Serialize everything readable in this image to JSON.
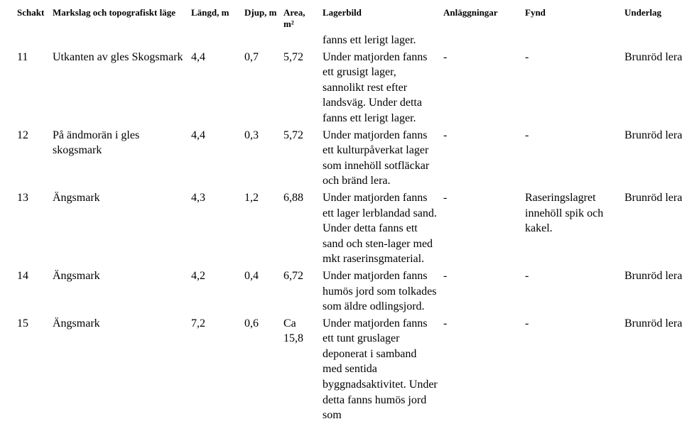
{
  "headers": {
    "schakt": "Schakt",
    "markslag": "Markslag och topografiskt läge",
    "langd": "Längd, m",
    "djup": "Djup, m",
    "area": "Area, m²",
    "lagerbild": "Lagerbild",
    "anlaggningar": "Anläggningar",
    "fynd": "Fynd",
    "underlag": "Underlag"
  },
  "prelude_text": "fanns ett lerigt lager.",
  "rows": [
    {
      "schakt": "11",
      "markslag": "Utkanten av gles Skogsmark",
      "langd": "4,4",
      "djup": "0,7",
      "area": "5,72",
      "lagerbild": "Under matjorden fanns ett grusigt lager, sannolikt rest efter landsväg. Under detta fanns ett lerigt lager.",
      "anlaggningar": "-",
      "fynd": "-",
      "underlag": "Brunröd lera"
    },
    {
      "schakt": "12",
      "markslag": "På ändmorän i gles skogsmark",
      "langd": "4,4",
      "djup": "0,3",
      "area": "5,72",
      "lagerbild": "Under matjorden fanns ett kulturpåverkat lager som innehöll sotfläckar och bränd lera.",
      "anlaggningar": "-",
      "fynd": "-",
      "underlag": "Brunröd lera"
    },
    {
      "schakt": "13",
      "markslag": "Ängsmark",
      "langd": "4,3",
      "djup": "1,2",
      "area": "6,88",
      "lagerbild": "Under matjorden fanns ett lager lerblandad sand. Under detta fanns ett sand och sten-lager med mkt raserinsgmaterial.",
      "anlaggningar": "-",
      "fynd": "Raseringslagret innehöll spik och kakel.",
      "underlag": "Brunröd lera"
    },
    {
      "schakt": "14",
      "markslag": "Ängsmark",
      "langd": "4,2",
      "djup": "0,4",
      "area": "6,72",
      "lagerbild": "Under matjorden fanns humös jord som tolkades som äldre odlingsjord.",
      "anlaggningar": "-",
      "fynd": "-",
      "underlag": "Brunröd lera"
    },
    {
      "schakt": "15",
      "markslag": "Ängsmark",
      "langd": "7,2",
      "djup": "0,6",
      "area": "Ca 15,8",
      "lagerbild": "Under matjorden fanns ett tunt gruslager deponerat i samband med sentida byggnadsaktivitet. Under detta fanns humös jord som",
      "anlaggningar": "-",
      "fynd": "-",
      "underlag": "Brunröd lera"
    }
  ]
}
